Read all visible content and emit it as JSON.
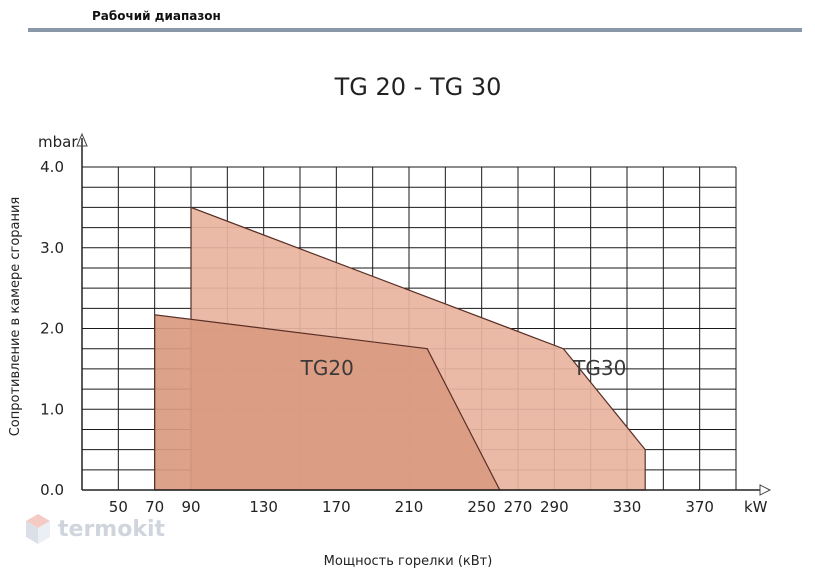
{
  "header": {
    "section_title": "Рабочий диапазон"
  },
  "watermark": {
    "text": "termokit"
  },
  "chart_data": {
    "type": "area",
    "title": "TG 20 - TG 30",
    "ylabel": "Сопротивление в камере сгорания",
    "xlabel": "Мощность горелки (кВт)",
    "y_unit": "mbar",
    "x_unit": "kW",
    "xlim": [
      30,
      390
    ],
    "ylim": [
      0,
      4.0
    ],
    "x_ticks": [
      50,
      70,
      90,
      130,
      170,
      210,
      250,
      270,
      290,
      330,
      370
    ],
    "y_ticks": [
      "0.0",
      "1.0",
      "2.0",
      "3.0",
      "4.0"
    ],
    "grid": true,
    "series": [
      {
        "name": "TG30",
        "points": [
          [
            90,
            0
          ],
          [
            90,
            3.5
          ],
          [
            295,
            1.75
          ],
          [
            340,
            0.5
          ],
          [
            340,
            0
          ]
        ],
        "color": "#e8b4a0"
      },
      {
        "name": "TG20",
        "points": [
          [
            70,
            0
          ],
          [
            70,
            2.17
          ],
          [
            220,
            1.75
          ],
          [
            260,
            0
          ]
        ],
        "color": "#d99a80"
      }
    ]
  }
}
